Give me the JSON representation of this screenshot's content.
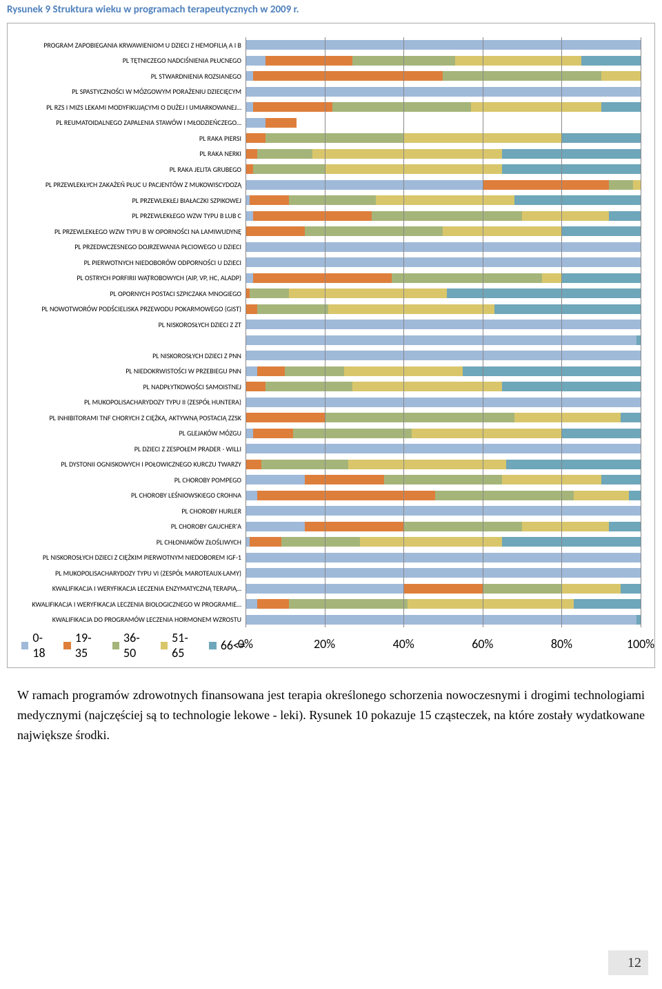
{
  "figure_title": "Rysunek 9  Struktura wieku w programach terapeutycznych w 2009 r.",
  "colors": {
    "c0_18": "#9fb9d9",
    "c19_35": "#de7e3b",
    "c36_50": "#a5b57a",
    "c51_65": "#d9c66a",
    "c66": "#6ea6ba",
    "gridline": "#888888",
    "border": "#aaaaaa",
    "title": "#4f81bd"
  },
  "legend": [
    {
      "label": "0-18",
      "color_key": "c0_18"
    },
    {
      "label": "19-35",
      "color_key": "c19_35"
    },
    {
      "label": "36-50",
      "color_key": "c36_50"
    },
    {
      "label": "51-65",
      "color_key": "c51_65"
    },
    {
      "label": "66<=",
      "color_key": "c66"
    }
  ],
  "xaxis": {
    "ticks": [
      "0%",
      "20%",
      "40%",
      "60%",
      "80%",
      "100%"
    ],
    "positions": [
      0,
      20,
      40,
      60,
      80,
      100
    ]
  },
  "rows": [
    {
      "label": "PROGRAM ZAPOBIEGANIA KRWAWIENIOM U DZIECI Z HEMOFILIĄ A I B",
      "v": [
        100,
        0,
        0,
        0,
        0
      ]
    },
    {
      "label": "PL TĘTNICZEGO NADCIŚNIENIA PŁUCNEGO",
      "v": [
        5,
        22,
        26,
        32,
        15
      ]
    },
    {
      "label": "PL STWARDNIENIA ROZSIANEGO",
      "v": [
        2,
        48,
        40,
        10,
        0
      ]
    },
    {
      "label": "PL SPASTYCZNOŚCI W MÓZGOWYM PORAŻENIU DZIECIĘCYM",
      "v": [
        100,
        0,
        0,
        0,
        0
      ]
    },
    {
      "label": "PL RZS I MIZS LEKAMI MODYFIKUJĄCYMI  O DUŻEJ I UMIARKOWANEJ…",
      "v": [
        2,
        20,
        35,
        33,
        10
      ]
    },
    {
      "label": "PL REUMATOIDALNEGO ZAPALENIA STAWÓW I MŁODZIEŃCZEGO…",
      "v": [
        5,
        8,
        0,
        0,
        0
      ],
      "incomplete": true
    },
    {
      "label": "PL RAKA PIERSI",
      "v": [
        0,
        5,
        35,
        40,
        20
      ]
    },
    {
      "label": "PL RAKA NERKI",
      "v": [
        0,
        3,
        14,
        48,
        35
      ]
    },
    {
      "label": "PL RAKA JELITA GRUBEGO",
      "v": [
        0,
        2,
        18,
        45,
        35
      ]
    },
    {
      "label": "PL PRZEWLEKŁYCH ZAKAŻEŃ PŁUC U PACJENTÓW Z MUKOWISCYDOZĄ",
      "v": [
        60,
        32,
        6,
        2,
        0
      ]
    },
    {
      "label": "PL PRZEWLEKŁEJ BIAŁACZKI SZPIKOWEJ",
      "v": [
        1,
        10,
        22,
        35,
        32
      ]
    },
    {
      "label": "PL PRZEWLEKŁEGO WZW TYPU B LUB C",
      "v": [
        2,
        30,
        38,
        22,
        8
      ]
    },
    {
      "label": "PL PRZEWLEKŁEGO WZW TYPU B  W OPORNOŚCI NA LAMIWUDYNĘ",
      "v": [
        0,
        15,
        35,
        30,
        20
      ]
    },
    {
      "label": "PL PRZEDWCZESNEGO DOJRZEWANIA PŁCIOWEGO U DZIECI",
      "v": [
        100,
        0,
        0,
        0,
        0
      ]
    },
    {
      "label": "PL PIERWOTNYCH NIEDOBORÓW ODPORNOŚCI U DZIECI",
      "v": [
        100,
        0,
        0,
        0,
        0
      ]
    },
    {
      "label": "PL OSTRYCH PORFIRII WĄTROBOWYCH (AIP, VP, HC, ALADP)",
      "v": [
        2,
        35,
        38,
        5,
        20
      ]
    },
    {
      "label": "PL OPORNYCH POSTACI SZPICZAKA MNOGIEGO",
      "v": [
        0,
        1,
        10,
        40,
        49
      ]
    },
    {
      "label": "PL NOWOTWORÓW PODŚCIELISKA PRZEWODU POKARMOWEGO  (GIST)",
      "v": [
        0,
        3,
        18,
        42,
        37
      ]
    },
    {
      "label": "PL NISKOROSŁYCH DZIECI Z ZT",
      "v": [
        100,
        0,
        0,
        0,
        0
      ]
    },
    {
      "label": "",
      "v": [
        99,
        0,
        0,
        0,
        1
      ]
    },
    {
      "label": "PL NISKOROSŁYCH DZIECI Z PNN",
      "v": [
        100,
        0,
        0,
        0,
        0
      ]
    },
    {
      "label": "PL NIEDOKRWISTOŚCI W PRZEBIEGU PNN",
      "v": [
        3,
        7,
        15,
        30,
        45
      ]
    },
    {
      "label": "PL NADPŁYTKOWOŚCI SAMOISTNEJ",
      "v": [
        0,
        5,
        22,
        38,
        35
      ]
    },
    {
      "label": "PL MUKOPOLISACHARYDOZY TYPU II (ZESPÓŁ HUNTERA)",
      "v": [
        100,
        0,
        0,
        0,
        0
      ]
    },
    {
      "label": "PL INHIBITORAMI TNF CHORYCH Z CIĘŻKĄ, AKTYWNĄ POSTACIĄ ZZSK",
      "v": [
        0,
        20,
        48,
        27,
        5
      ]
    },
    {
      "label": "PL GLEJAKÓW MÓZGU",
      "v": [
        2,
        10,
        30,
        38,
        20
      ]
    },
    {
      "label": "PL DZIECI Z  ZESPOŁEM PRADER - WILLI",
      "v": [
        100,
        0,
        0,
        0,
        0
      ]
    },
    {
      "label": "PL DYSTONII OGNISKOWYCH I POŁOWICZNEGO KURCZU TWARZY",
      "v": [
        0,
        4,
        22,
        40,
        34
      ]
    },
    {
      "label": "PL CHOROBY POMPEGO",
      "v": [
        15,
        20,
        30,
        25,
        10
      ]
    },
    {
      "label": "PL CHOROBY LEŚNIOWSKIEGO CROHNA",
      "v": [
        3,
        45,
        35,
        14,
        3
      ]
    },
    {
      "label": "PL CHOROBY HURLER",
      "v": [
        100,
        0,
        0,
        0,
        0
      ]
    },
    {
      "label": "PL CHOROBY GAUCHER'A",
      "v": [
        15,
        25,
        30,
        22,
        8
      ]
    },
    {
      "label": "PL CHŁONIAKÓW ZŁOŚLIWYCH",
      "v": [
        1,
        8,
        20,
        36,
        35
      ]
    },
    {
      "label": "PL  NISKOROSŁYCH DZIECI Z CIĘŻKIM PIERWOTNYM NIEDOBOREM IGF-1",
      "v": [
        100,
        0,
        0,
        0,
        0
      ]
    },
    {
      "label": "PL  MUKOPOLISACHARYDOZY TYPU VI (ZESPÓŁ MAROTEAUX-LAMY)",
      "v": [
        100,
        0,
        0,
        0,
        0
      ]
    },
    {
      "label": "KWALIFIKACJA I WERYFIKACJA LECZENIA ENZYMATYCZNĄ TERAPIĄ…",
      "v": [
        40,
        20,
        20,
        15,
        5
      ]
    },
    {
      "label": "KWALIFIKACJA I WERYFIKACJA LECZENIA BIOLOGICZNEGO W PROGRAMIE…",
      "v": [
        3,
        8,
        30,
        42,
        17
      ]
    },
    {
      "label": "KWALIFIKACJA DO PROGRAMÓW LECZENIA HORMONEM WZROSTU",
      "v": [
        99,
        0,
        0,
        0,
        1
      ]
    }
  ],
  "caption": "W ramach programów zdrowotnych finansowana jest terapia określonego schorzenia nowoczesnymi i drogimi technologiami medycznymi (najczęściej są to technologie lekowe - leki). Rysunek 10 pokazuje 15 cząsteczek, na które zostały wydatkowane największe środki.",
  "page_number": "12"
}
